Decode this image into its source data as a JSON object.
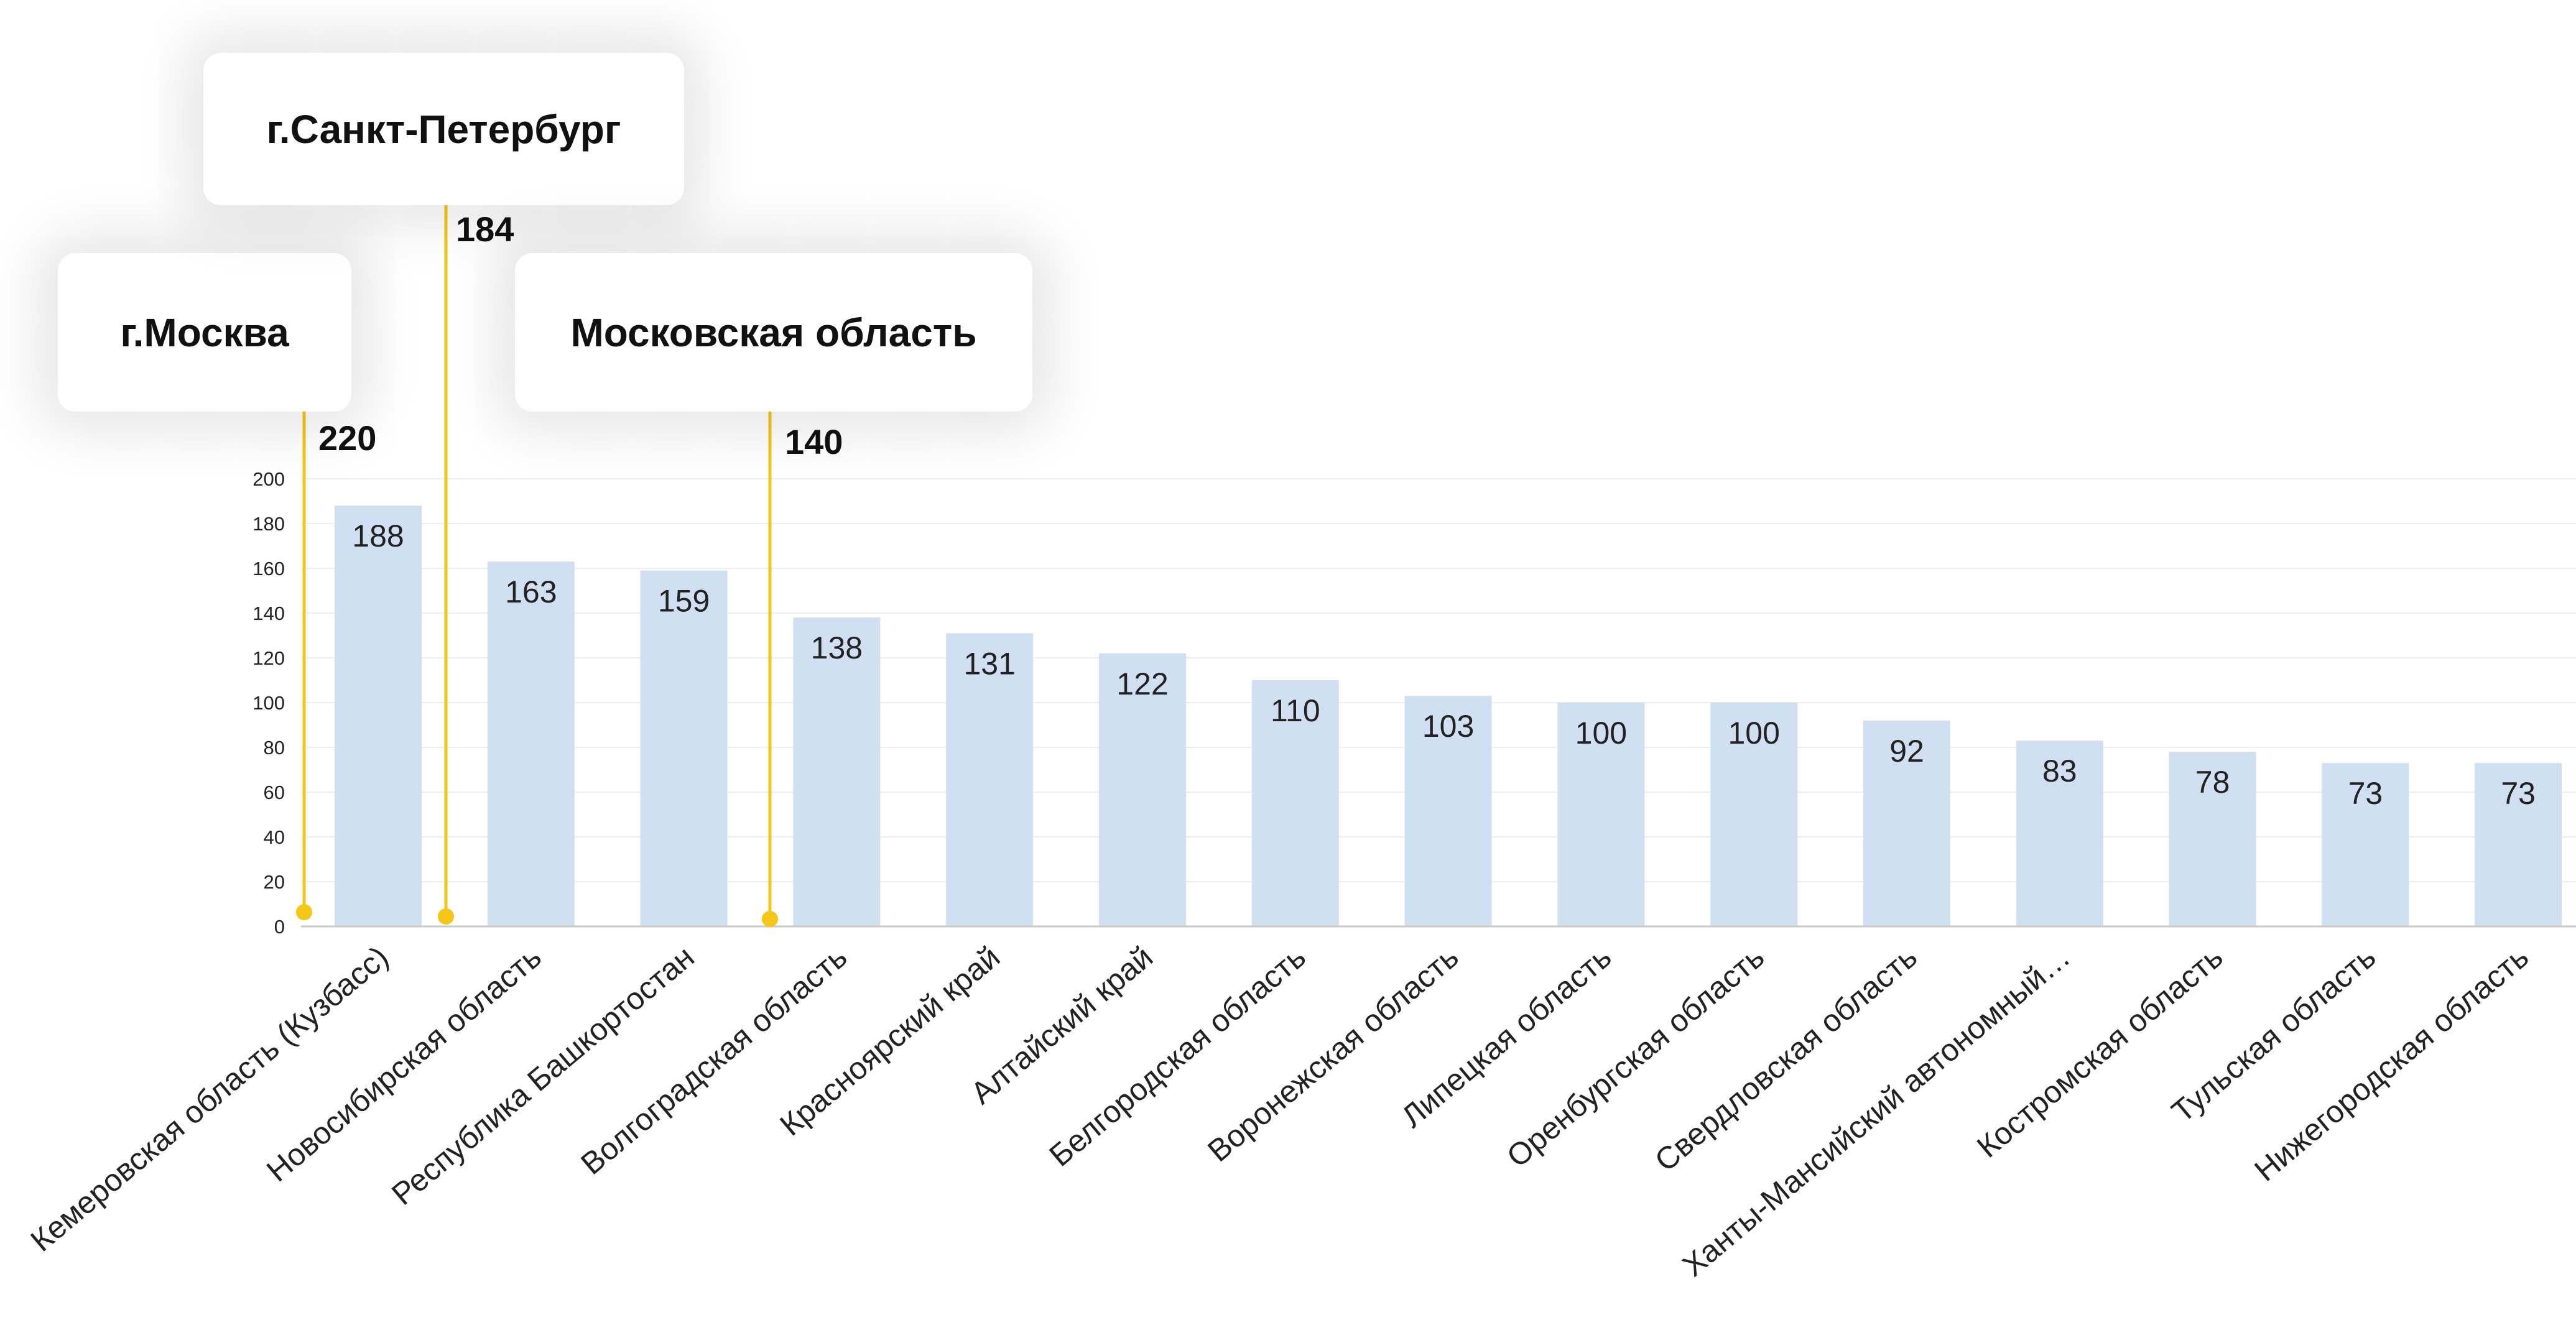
{
  "chart_data": {
    "type": "bar",
    "categories": [
      "Кемеровская область (Кузбасс)",
      "Новосибирская область",
      "Республика Башкортостан",
      "Волгоградская область",
      "Красноярский край",
      "Алтайский край",
      "Белгородская область",
      "Воронежская область",
      "Липецкая область",
      "Оренбургская область",
      "Свердловская область",
      "Ханты-Мансийский автономный…",
      "Костромская область",
      "Тульская область",
      "Нижегородская область"
    ],
    "values": [
      188,
      163,
      159,
      138,
      131,
      122,
      110,
      103,
      100,
      100,
      92,
      83,
      78,
      73,
      73
    ],
    "ylim": [
      0,
      200
    ],
    "yticks": [
      0,
      20,
      40,
      60,
      80,
      100,
      120,
      140,
      160,
      180,
      200
    ],
    "grid": true,
    "bar_color": "#d1dff2",
    "callout_color": "#f5c518",
    "title": "",
    "xlabel": "",
    "ylabel": "",
    "callouts": [
      {
        "label": "г.Москва",
        "value": 220
      },
      {
        "label": "г.Санкт-Петербург",
        "value": 184
      },
      {
        "label": "Московская область",
        "value": 140
      }
    ]
  }
}
